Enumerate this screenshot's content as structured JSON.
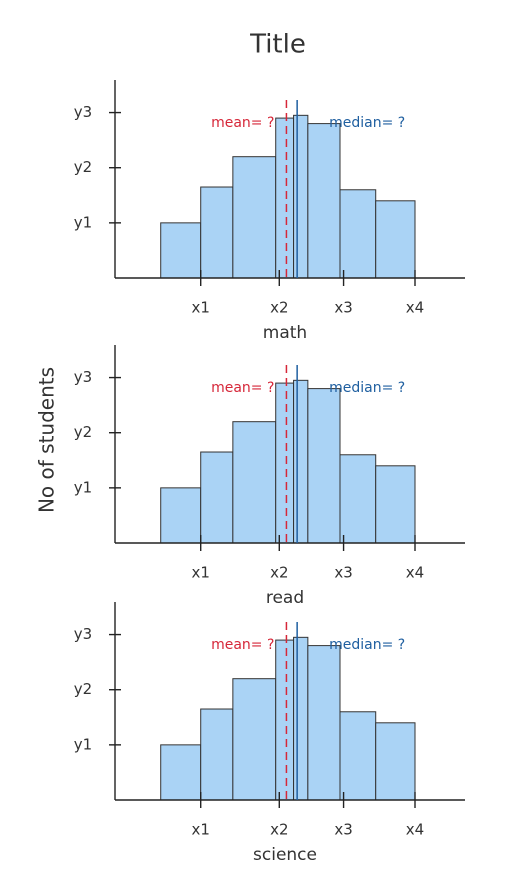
{
  "title": "Title",
  "ylabel": "No of students",
  "chart_data": [
    {
      "type": "histogram",
      "xlabel": "math",
      "bins": [
        0.44,
        1,
        1.45,
        2.05,
        2.3,
        2.5,
        2.95,
        3.45,
        4
      ],
      "values": [
        1,
        1.65,
        2.2,
        2.9,
        2.95,
        2.8,
        1.6,
        1.4
      ],
      "color": "#aad3f5",
      "xlim": [
        -0.2,
        4.7
      ],
      "ylim": [
        0,
        3.5
      ],
      "xticks": [
        {
          "value": 1,
          "label": "x1"
        },
        {
          "value": 2.1,
          "label": "x2"
        },
        {
          "value": 3,
          "label": "x3"
        },
        {
          "value": 4,
          "label": "x4"
        }
      ],
      "yticks": [
        {
          "value": 1,
          "label": "y1"
        },
        {
          "value": 2,
          "label": "y2"
        },
        {
          "value": 3,
          "label": "y3"
        }
      ],
      "lines": [
        {
          "label": "mean= ?",
          "value": 2.2,
          "color": "#d62739"
        },
        {
          "label": "median= ?",
          "value": 2.35,
          "color": "#1f5fa0"
        }
      ]
    },
    {
      "type": "histogram",
      "xlabel": "read",
      "bins": [
        0.44,
        1,
        1.45,
        2.05,
        2.3,
        2.5,
        2.95,
        3.45,
        4
      ],
      "values": [
        1,
        1.65,
        2.2,
        2.9,
        2.95,
        2.8,
        1.6,
        1.4
      ],
      "color": "#aad3f5",
      "xlim": [
        -0.2,
        4.7
      ],
      "ylim": [
        0,
        3.5
      ],
      "xticks": [
        {
          "value": 1,
          "label": "x1"
        },
        {
          "value": 2.1,
          "label": "x2"
        },
        {
          "value": 3,
          "label": "x3"
        },
        {
          "value": 4,
          "label": "x4"
        }
      ],
      "yticks": [
        {
          "value": 1,
          "label": "y1"
        },
        {
          "value": 2,
          "label": "y2"
        },
        {
          "value": 3,
          "label": "y3"
        }
      ],
      "lines": [
        {
          "label": "mean= ?",
          "value": 2.2,
          "color": "#d62739"
        },
        {
          "label": "median= ?",
          "value": 2.35,
          "color": "#1f5fa0"
        }
      ]
    },
    {
      "type": "histogram",
      "xlabel": "science",
      "bins": [
        0.44,
        1,
        1.45,
        2.05,
        2.3,
        2.5,
        2.95,
        3.45,
        4
      ],
      "values": [
        1,
        1.65,
        2.2,
        2.9,
        2.95,
        2.8,
        1.6,
        1.4
      ],
      "color": "#aad3f5",
      "xlim": [
        -0.2,
        4.7
      ],
      "ylim": [
        0,
        3.5
      ],
      "xticks": [
        {
          "value": 1,
          "label": "x1"
        },
        {
          "value": 2.1,
          "label": "x2"
        },
        {
          "value": 3,
          "label": "x3"
        },
        {
          "value": 4,
          "label": "x4"
        }
      ],
      "yticks": [
        {
          "value": 1,
          "label": "y1"
        },
        {
          "value": 2,
          "label": "y2"
        },
        {
          "value": 3,
          "label": "y3"
        }
      ],
      "lines": [
        {
          "label": "mean= ?",
          "value": 2.2,
          "color": "#d62739"
        },
        {
          "label": "median= ?",
          "value": 2.35,
          "color": "#1f5fa0"
        }
      ]
    }
  ]
}
